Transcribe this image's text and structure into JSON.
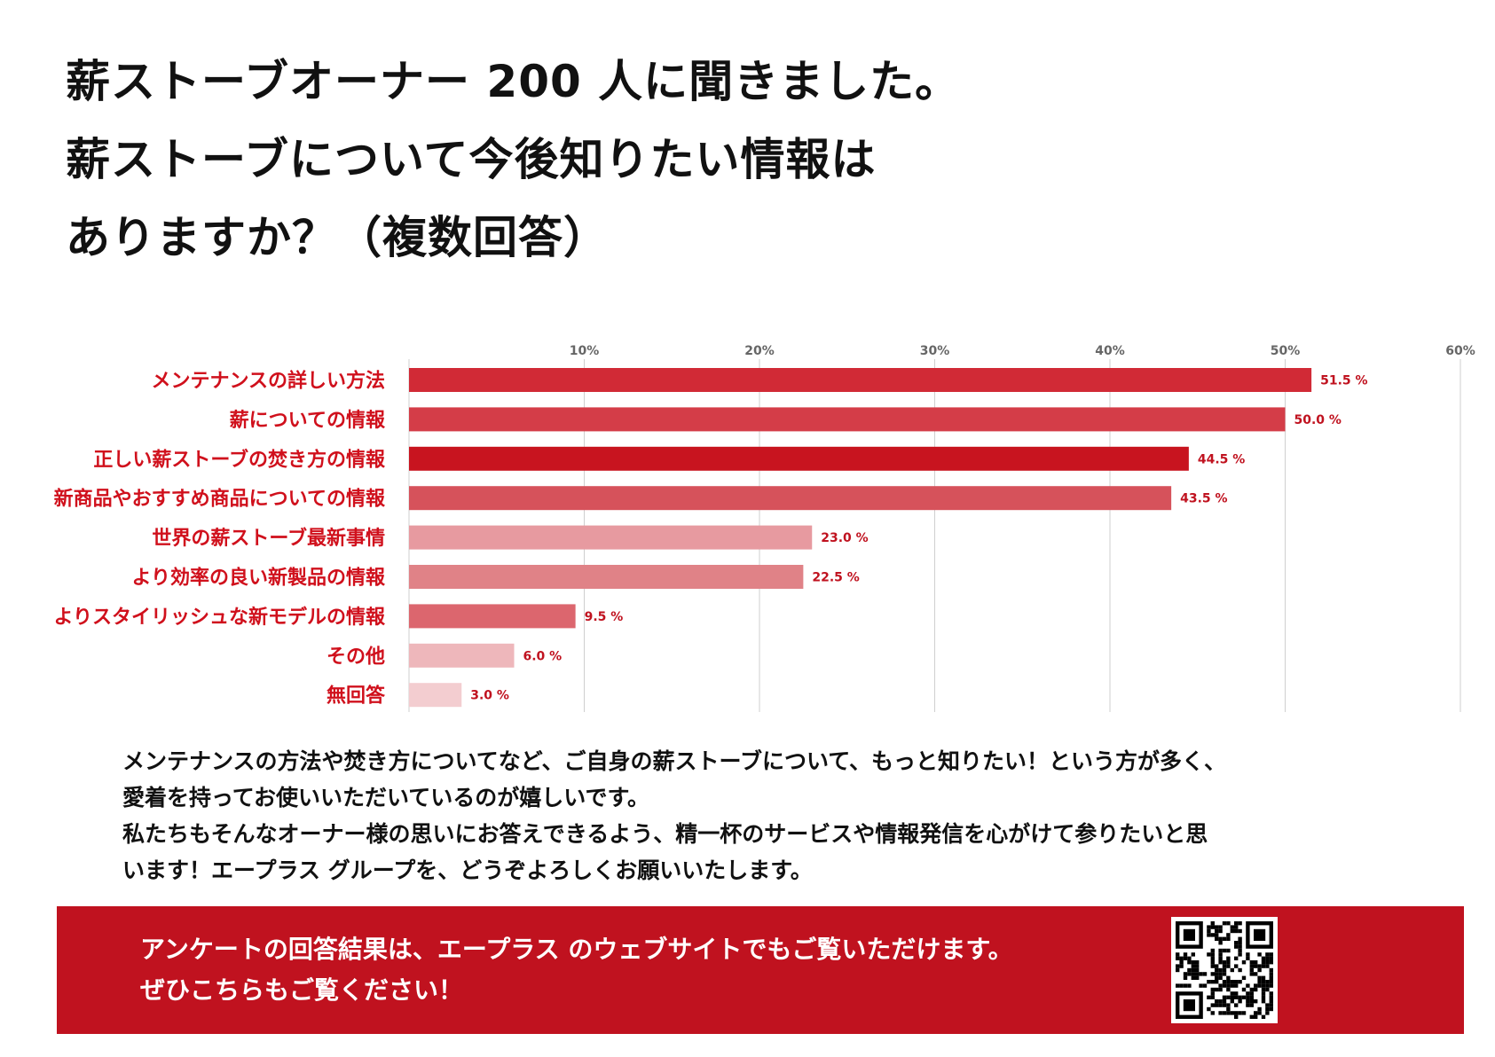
{
  "title_lines": [
    "薪ストーブオーナー 200 人に聞きました。",
    "薪ストーブについて今後知りたい情報は",
    "ありますか？（複数回答）"
  ],
  "chart_data": {
    "type": "bar",
    "orientation": "horizontal",
    "title": "",
    "xlabel": "",
    "ylabel": "",
    "xlim": [
      0,
      60
    ],
    "ticks": [
      10,
      20,
      30,
      40,
      50,
      60
    ],
    "tick_labels": [
      "10%",
      "20%",
      "30%",
      "40%",
      "50%",
      "60%"
    ],
    "grid": true,
    "categories": [
      "メンテナンスの詳しい方法",
      "薪についての情報",
      "正しい薪ストーブの焚き方の情報",
      "新商品やおすすめ商品についての情報",
      "世界の薪ストーブ最新事情",
      "より効率の良い新製品の情報",
      "よりスタイリッシュな新モデルの情報",
      "その他",
      "無回答"
    ],
    "values": [
      51.5,
      50.0,
      44.5,
      43.5,
      23.0,
      22.5,
      9.5,
      6.0,
      3.0
    ],
    "value_labels": [
      "51.5 %",
      "50.0 %",
      "44.5 %",
      "43.5 %",
      "23.0 %",
      "22.5 %",
      "9.5 %",
      "6.0 %",
      "3.0 %"
    ],
    "bar_colors": [
      "#d12a36",
      "#d43d48",
      "#c8141f",
      "#d6525b",
      "#e79aa0",
      "#e08287",
      "#dc666e",
      "#eeb7bb",
      "#f3cdd0"
    ],
    "label_color": "#d0101c",
    "value_label_color": "#c0121f"
  },
  "summary_lines": [
    "メンテナンスの方法や焚き方についてなど、ご自身の薪ストーブについて、もっと知りたい！という方が多く、",
    "愛着を持ってお使いいただいているのが嬉しいです。",
    "私たちもそんなオーナー様の思いにお答えできるよう、精一杯のサービスや情報発信を心がけて参りたいと思",
    "います！エープラス グループを、どうぞよろしくお願いいたします。"
  ],
  "banner": {
    "line1": "アンケートの回答結果は、エープラス のウェブサイトでもご覧いただけます。",
    "line2": "ぜひこちらもご覧ください！",
    "background": "#c0121f",
    "qr_icon": "qr-code-icon"
  }
}
